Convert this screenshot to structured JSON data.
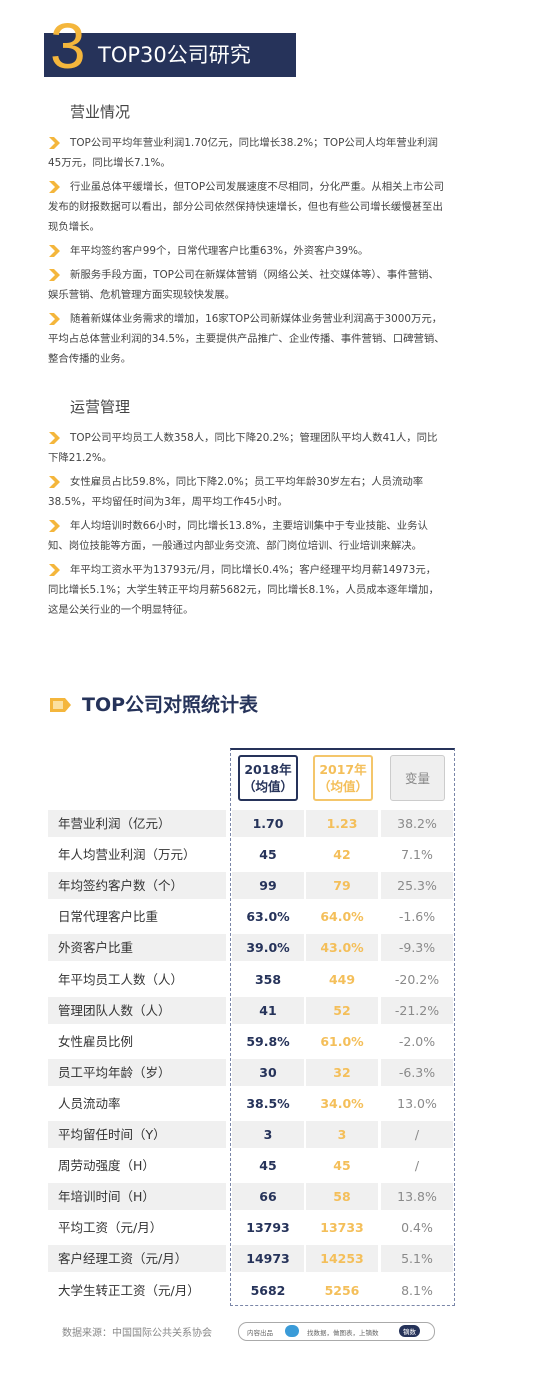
{
  "header": {
    "number": "3",
    "title": "TOP30公司研究"
  },
  "sections": [
    {
      "heading": "营业情况",
      "bullets": [
        "TOP公司平均年营业利润1.70亿元，同比增长38.2%；TOP公司人均年营业利润45万元，同比增长7.1%。",
        "行业虽总体平缓增长，但TOP公司发展速度不尽相同，分化严重。从相关上市公司发布的财报数据可以看出，部分公司依然保持快速增长，但也有些公司增长缓慢甚至出现负增长。",
        "年平均签约客户99个，日常代理客户比重63%，外资客户39%。",
        "新服务手段方面，TOP公司在新媒体营销（网络公关、社交媒体等）、事件营销、娱乐营销、危机管理方面实现较快发展。",
        "随着新媒体业务需求的增加，16家TOP公司新媒体业务营业利润高于3000万元，平均占总体营业利润的34.5%，主要提供产品推广、企业传播、事件营销、口碑营销、整合传播的业务。"
      ]
    },
    {
      "heading": "运营管理",
      "bullets": [
        "TOP公司平均员工人数358人，同比下降20.2%；管理团队平均人数41人，同比下降21.2%。",
        "女性雇员占比59.8%，同比下降2.0%；员工平均年龄30岁左右；人员流动率38.5%，平均留任时间为3年，周平均工作45小时。",
        "年人均培训时数66小时，同比增长13.8%，主要培训集中于专业技能、业务认知、岗位技能等方面，一般通过内部业务交流、部门岗位培训、行业培训来解决。",
        "年平均工资水平为13793元/月，同比增长0.4%；客户经理平均月薪14973元，同比增长5.1%；大学生转正平均月薪5682元，同比增长8.1%，人员成本逐年增加，这是公关行业的一个明显特征。"
      ]
    }
  ],
  "table": {
    "title": "TOP公司对照统计表",
    "columns": [
      [
        "2018年",
        "（均值）"
      ],
      [
        "2017年",
        "（均值）"
      ],
      [
        "变量"
      ]
    ],
    "rows": [
      [
        "年营业利润（亿元）",
        "1.70",
        "1.23",
        "38.2%"
      ],
      [
        "年人均营业利润（万元）",
        "45",
        "42",
        "7.1%"
      ],
      [
        "年均签约客户数（个）",
        "99",
        "79",
        "25.3%"
      ],
      [
        "日常代理客户比重",
        "63.0%",
        "64.0%",
        "-1.6%"
      ],
      [
        "外资客户比重",
        "39.0%",
        "43.0%",
        "-9.3%"
      ],
      [
        "年平均员工人数（人）",
        "358",
        "449",
        "-20.2%"
      ],
      [
        "管理团队人数（人）",
        "41",
        "52",
        "-21.2%"
      ],
      [
        "女性雇员比例",
        "59.8%",
        "61.0%",
        "-2.0%"
      ],
      [
        "员工平均年龄（岁）",
        "30",
        "32",
        "-6.3%"
      ],
      [
        "人员流动率",
        "38.5%",
        "34.0%",
        "13.0%"
      ],
      [
        "平均留任时间（Y）",
        "3",
        "3",
        "/"
      ],
      [
        "周劳动强度（H）",
        "45",
        "45",
        "/"
      ],
      [
        "年培训时间（H）",
        "66",
        "58",
        "13.8%"
      ],
      [
        "平均工资（元/月）",
        "13793",
        "13733",
        "0.4%"
      ],
      [
        "客户经理工资（元/月）",
        "14973",
        "14253",
        "5.1%"
      ],
      [
        "大学生转正工资（元/月）",
        "5682",
        "5256",
        "8.1%"
      ]
    ]
  },
  "footer": {
    "source": "数据来源：中国国际公共关系协会",
    "brand_label": "内容出品",
    "slogan": "找数据，做图表，上镝数",
    "brand": "镝数"
  }
}
